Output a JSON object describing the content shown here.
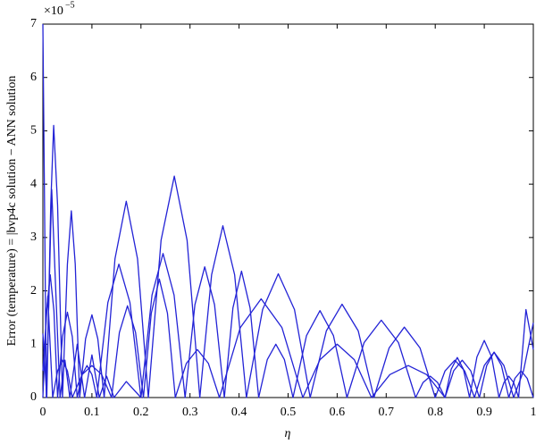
{
  "chart_data": {
    "type": "line",
    "xlabel": "η",
    "ylabel": "Error (temperature) = |bvp4c solution − ANN solution",
    "y_multiplier": {
      "base": "×10",
      "exponent": "−5"
    },
    "xlim": [
      0,
      1
    ],
    "xticks": [
      0,
      0.1,
      0.2,
      0.3,
      0.4,
      0.5,
      0.6,
      0.7,
      0.8,
      0.9,
      1
    ],
    "ylim": [
      0,
      7
    ],
    "yticks": [
      0,
      1,
      2,
      3,
      4,
      5,
      6,
      7
    ],
    "series": [
      {
        "color": "#2323d6",
        "x": [
          0,
          0.008,
          0.016,
          0.022,
          0.03,
          0.04,
          0.05,
          0.058,
          0.066,
          0.075,
          0.087,
          0.1,
          0.112,
          0.125,
          0.147,
          0.17,
          0.193,
          0.215,
          0.241,
          0.268,
          0.294,
          0.32,
          0.344,
          0.367,
          0.391,
          0.415,
          0.448,
          0.48,
          0.513,
          0.545,
          0.578,
          0.61,
          0.643,
          0.675,
          0.706,
          0.737,
          0.769,
          0.8,
          0.82,
          0.84,
          0.86,
          0.88,
          0.9,
          0.92,
          0.94,
          0.96,
          0.98,
          1
        ],
        "values": [
          1.2,
          0,
          3.6,
          5.1,
          3.6,
          0,
          2.5,
          3.5,
          2.5,
          0,
          1.1,
          1.55,
          1.1,
          0,
          2.6,
          3.68,
          2.6,
          0,
          2.95,
          4.15,
          2.95,
          0,
          2.3,
          3.22,
          2.3,
          0,
          1.65,
          2.32,
          1.65,
          0,
          1.25,
          1.75,
          1.25,
          0,
          0.93,
          1.32,
          0.93,
          0,
          0.5,
          0.7,
          0.5,
          0,
          0.6,
          0.85,
          0.6,
          0,
          0.5,
          1.4
        ]
      },
      {
        "color": "#2323d6",
        "x": [
          0,
          0.0075,
          0.015,
          0.0225,
          0.03,
          0.04,
          0.05,
          0.06,
          0.07,
          0.08,
          0.09,
          0.1,
          0.11,
          0.1325,
          0.155,
          0.1775,
          0.2,
          0.2225,
          0.245,
          0.2675,
          0.29,
          0.31,
          0.33,
          0.35,
          0.37,
          0.3875,
          0.405,
          0.4225,
          0.44,
          0.4575,
          0.475,
          0.4925,
          0.51,
          0.5375,
          0.565,
          0.5925,
          0.62,
          0.655,
          0.69,
          0.725,
          0.76,
          0.775,
          0.79,
          0.805,
          0.82,
          0.8325,
          0.845,
          0.8575,
          0.87,
          0.885,
          0.9,
          0.915,
          0.93,
          0.94,
          0.95,
          0.96,
          0.97,
          0.985,
          1
        ],
        "values": [
          0,
          1.63,
          2.3,
          1.63,
          0,
          1.14,
          1.6,
          1.14,
          0,
          0.43,
          0.6,
          0.43,
          0,
          1.78,
          2.5,
          1.78,
          0,
          1.92,
          2.7,
          1.92,
          0,
          1.74,
          2.45,
          1.74,
          0,
          1.68,
          2.37,
          1.68,
          0,
          0.71,
          1.0,
          0.71,
          0,
          1.16,
          1.63,
          1.16,
          0,
          1.03,
          1.45,
          1.03,
          0,
          0.28,
          0.4,
          0.28,
          0,
          0.53,
          0.75,
          0.53,
          0,
          0.76,
          1.07,
          0.76,
          0,
          0.28,
          0.4,
          0.28,
          0,
          1.65,
          0.9
        ]
      },
      {
        "color": "#2323d6",
        "x": [
          0,
          0.01,
          0.02,
          0.03,
          0.04,
          0.05,
          0.06,
          0.08,
          0.1,
          0.12,
          0.14,
          0.156,
          0.1725,
          0.189,
          0.205,
          0.221,
          0.2375,
          0.254,
          0.27,
          0.2925,
          0.315,
          0.3375,
          0.36,
          0.4025,
          0.445,
          0.4875,
          0.53,
          0.565,
          0.6,
          0.635,
          0.67,
          0.7075,
          0.745,
          0.7825,
          0.82,
          0.8375,
          0.855,
          0.8725,
          0.89,
          0.905,
          0.92,
          0.935,
          0.95,
          0.9625,
          0.975,
          0.9875,
          1
        ],
        "values": [
          0.5,
          1.9,
          0,
          0.5,
          0.7,
          0.5,
          0,
          0.43,
          0.6,
          0.43,
          0,
          1.22,
          1.72,
          1.22,
          0,
          1.58,
          2.22,
          1.58,
          0,
          0.64,
          0.9,
          0.64,
          0,
          1.31,
          1.85,
          1.31,
          0,
          0.71,
          1.0,
          0.71,
          0,
          0.43,
          0.6,
          0.43,
          0,
          0.5,
          0.7,
          0.5,
          0,
          0.6,
          0.85,
          0.6,
          0,
          0.36,
          0.5,
          0.36,
          0
        ]
      },
      {
        "color": "#2323d6",
        "x": [
          0,
          0.004,
          0.007,
          0.018,
          0.035,
          0.045,
          0.055,
          0.07,
          0.085,
          0.1,
          0.115,
          0.13,
          0.145,
          0.17,
          0.2
        ],
        "values": [
          7,
          3,
          0,
          3.9,
          0,
          0.7,
          0,
          1.0,
          0,
          0.8,
          0,
          0.4,
          0,
          0.3,
          0
        ]
      }
    ]
  }
}
